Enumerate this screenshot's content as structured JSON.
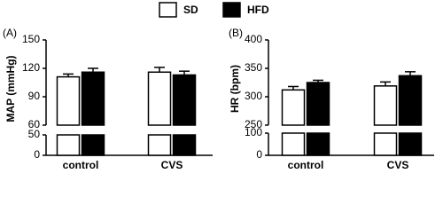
{
  "legend": {
    "entries": [
      {
        "name": "SD",
        "color": "#ffffff"
      },
      {
        "name": "HFD",
        "color": "#000000"
      }
    ]
  },
  "chart_data": [
    {
      "type": "bar",
      "panel_label": "(A)",
      "y_label": "MAP (mmHg)",
      "categories": [
        "control",
        "CVS"
      ],
      "series": [
        {
          "values": [
            111,
            116
          ],
          "errors": [
            3,
            5
          ]
        },
        {
          "values": [
            116,
            113
          ],
          "errors": [
            4,
            4
          ]
        }
      ],
      "y_segments": [
        {
          "ylim": [
            0,
            50
          ],
          "yticks": [
            0,
            50
          ]
        },
        {
          "ylim": [
            60,
            150
          ],
          "yticks": [
            60,
            90,
            120,
            150
          ]
        }
      ]
    },
    {
      "type": "bar",
      "panel_label": "(B)",
      "y_label": "HR (bpm)",
      "categories": [
        "control",
        "CVS"
      ],
      "series": [
        {
          "values": [
            312,
            319
          ],
          "errors": [
            6,
            7
          ]
        },
        {
          "values": [
            325,
            337
          ],
          "errors": [
            4,
            7
          ]
        }
      ],
      "y_segments": [
        {
          "ylim": [
            0,
            100
          ],
          "yticks": [
            0,
            100
          ]
        },
        {
          "ylim": [
            250,
            400
          ],
          "yticks": [
            250,
            300,
            350,
            400
          ]
        }
      ]
    }
  ]
}
